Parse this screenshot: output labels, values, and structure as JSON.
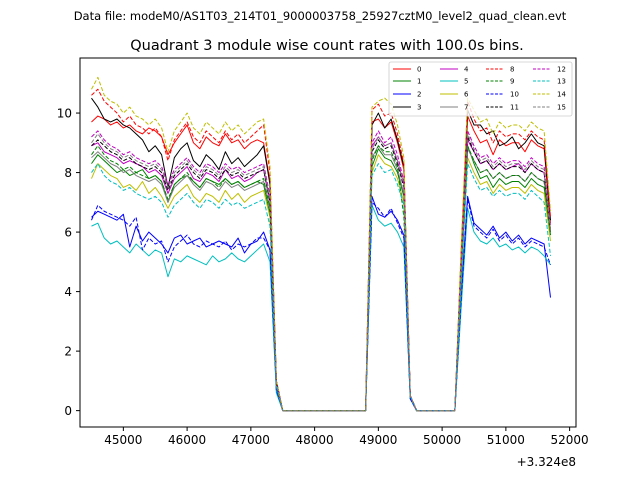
{
  "suptitle": "Data file: modeM0/AS1T03_214T01_9000003758_25927cztM0_level2_quad_clean.evt",
  "chart_data": {
    "type": "line",
    "title": "Quadrant 3 module wise count rates with 100.0s bins.",
    "xlabel": "",
    "ylabel": "",
    "x_offset_label": "+3.324e8",
    "xlim": [
      44320,
      52100
    ],
    "ylim": [
      -0.55,
      11.85
    ],
    "xticks": [
      45000,
      46000,
      47000,
      48000,
      49000,
      50000,
      51000,
      52000
    ],
    "xtick_labels": [
      "45000",
      "46000",
      "47000",
      "48000",
      "49000",
      "50000",
      "51000",
      "52000"
    ],
    "yticks": [
      0,
      2,
      4,
      6,
      8,
      10
    ],
    "ytick_labels": [
      "0",
      "2",
      "4",
      "6",
      "8",
      "10"
    ],
    "grid": false,
    "legend_position": "top-right",
    "note": "x values are seconds relative to offset +3.324e8; each series is sampled on a 100 s grid split into three observing segments (44500-47400, 48800-49500, 50200-51700) joined by zero-rate gaps",
    "segments": [
      {
        "start": 44500,
        "step": 100,
        "count": 30
      },
      {
        "start": 48800,
        "step": 100,
        "count": 8
      },
      {
        "start": 50200,
        "step": 100,
        "count": 16
      }
    ],
    "series": [
      {
        "name": "0",
        "color": "#ff0000",
        "dash": "solid",
        "seg1": [
          9.7,
          9.9,
          9.8,
          9.6,
          9.7,
          9.5,
          9.6,
          9.4,
          9.3,
          9.5,
          9.4,
          9.2,
          8.6,
          9.0,
          9.3,
          9.6,
          9.0,
          8.8,
          9.2,
          9.0,
          8.9,
          9.3,
          9.0,
          9.1,
          8.8,
          9.0,
          9.1,
          9.0,
          7.7,
          1.0
        ],
        "seg2": [
          0.0,
          9.7,
          9.8,
          9.5,
          9.7,
          9.0,
          8.1,
          0.5
        ],
        "seg3": [
          0.0,
          5.2,
          9.9,
          9.4,
          9.0,
          9.1,
          8.6,
          9.1,
          8.9,
          9.0,
          9.0,
          8.7,
          9.1,
          8.9,
          8.8,
          6.3
        ]
      },
      {
        "name": "1",
        "color": "#008000",
        "dash": "solid",
        "seg1": [
          8.3,
          8.6,
          8.4,
          8.2,
          8.0,
          8.1,
          7.9,
          8.0,
          8.1,
          7.8,
          7.9,
          7.7,
          7.0,
          7.6,
          7.8,
          7.9,
          7.7,
          7.5,
          7.8,
          7.7,
          7.6,
          7.8,
          7.6,
          7.7,
          7.5,
          7.6,
          7.7,
          7.6,
          6.6,
          0.9
        ],
        "seg2": [
          0.0,
          8.2,
          8.8,
          8.5,
          8.4,
          8.0,
          7.2,
          0.5
        ],
        "seg3": [
          0.0,
          4.5,
          8.9,
          8.3,
          7.8,
          7.9,
          7.5,
          7.8,
          7.6,
          7.7,
          7.7,
          7.5,
          7.8,
          7.6,
          7.5,
          5.9
        ]
      },
      {
        "name": "2",
        "color": "#0000ff",
        "dash": "solid",
        "seg1": [
          6.5,
          6.7,
          6.6,
          6.5,
          6.4,
          6.6,
          5.5,
          6.2,
          5.7,
          6.0,
          5.8,
          5.6,
          5.3,
          5.8,
          5.9,
          5.6,
          5.7,
          5.8,
          5.5,
          5.6,
          5.7,
          5.6,
          5.5,
          5.8,
          5.3,
          5.6,
          5.7,
          6.0,
          5.4,
          0.7
        ],
        "seg2": [
          0.0,
          7.2,
          6.6,
          6.5,
          6.7,
          6.4,
          5.9,
          0.4
        ],
        "seg3": [
          0.0,
          3.9,
          7.2,
          6.3,
          6.1,
          5.9,
          6.2,
          5.8,
          6.0,
          5.7,
          5.9,
          5.6,
          5.8,
          5.7,
          5.6,
          3.8
        ]
      },
      {
        "name": "3",
        "color": "#000000",
        "dash": "solid",
        "seg1": [
          10.5,
          10.2,
          9.8,
          9.7,
          9.8,
          9.6,
          9.5,
          9.3,
          9.1,
          8.7,
          8.9,
          8.6,
          7.5,
          8.5,
          8.8,
          9.0,
          8.4,
          8.2,
          8.6,
          8.4,
          8.1,
          8.7,
          8.3,
          8.5,
          8.2,
          8.4,
          8.6,
          8.9,
          7.6,
          1.0
        ],
        "seg2": [
          0.0,
          9.6,
          10.0,
          9.5,
          9.8,
          9.1,
          8.2,
          0.5
        ],
        "seg3": [
          0.0,
          5.3,
          10.1,
          9.6,
          9.6,
          9.3,
          9.4,
          8.9,
          9.0,
          9.2,
          8.8,
          9.0,
          9.3,
          9.0,
          8.9,
          6.4
        ]
      },
      {
        "name": "4",
        "color": "#c000c0",
        "dash": "solid",
        "seg1": [
          8.9,
          9.0,
          8.7,
          8.6,
          8.5,
          8.3,
          8.4,
          8.3,
          8.2,
          8.0,
          8.1,
          7.9,
          7.3,
          7.8,
          8.0,
          8.2,
          7.8,
          7.7,
          8.0,
          7.9,
          7.7,
          8.1,
          7.8,
          7.9,
          7.7,
          7.8,
          8.0,
          8.1,
          7.0,
          0.9
        ],
        "seg2": [
          0.0,
          8.9,
          9.2,
          8.9,
          9.0,
          8.4,
          7.6,
          0.5
        ],
        "seg3": [
          0.0,
          4.7,
          9.1,
          8.7,
          8.3,
          8.4,
          8.1,
          8.3,
          8.1,
          8.2,
          8.3,
          8.0,
          8.3,
          8.1,
          8.0,
          6.0
        ]
      },
      {
        "name": "5",
        "color": "#00bfbf",
        "dash": "solid",
        "seg1": [
          6.2,
          6.3,
          5.8,
          5.6,
          5.7,
          5.5,
          5.3,
          5.6,
          5.4,
          5.2,
          5.4,
          5.3,
          4.5,
          5.1,
          5.0,
          5.2,
          5.1,
          5.0,
          4.9,
          5.2,
          5.0,
          5.1,
          5.3,
          5.1,
          5.0,
          5.2,
          5.4,
          5.6,
          5.0,
          0.6
        ],
        "seg2": [
          0.0,
          6.9,
          6.4,
          6.2,
          6.3,
          6.0,
          5.5,
          0.4
        ],
        "seg3": [
          0.0,
          3.5,
          6.8,
          6.0,
          5.7,
          5.6,
          5.8,
          5.5,
          5.6,
          5.4,
          5.5,
          5.3,
          5.5,
          5.4,
          5.2,
          4.9
        ]
      },
      {
        "name": "6",
        "color": "#bfbf00",
        "dash": "solid",
        "seg1": [
          7.8,
          8.3,
          8.1,
          7.9,
          7.8,
          7.5,
          7.6,
          7.4,
          7.7,
          7.3,
          7.5,
          7.2,
          6.8,
          7.2,
          7.4,
          7.6,
          7.2,
          7.0,
          7.3,
          7.2,
          7.0,
          7.4,
          7.1,
          7.3,
          7.0,
          7.2,
          7.3,
          7.4,
          6.5,
          0.9
        ],
        "seg2": [
          0.0,
          8.0,
          8.6,
          8.3,
          8.2,
          7.8,
          7.0,
          0.5
        ],
        "seg3": [
          0.0,
          4.3,
          8.5,
          8.0,
          7.6,
          7.7,
          7.3,
          7.6,
          7.4,
          7.5,
          7.5,
          7.3,
          7.6,
          7.4,
          7.3,
          5.7
        ]
      },
      {
        "name": "7",
        "color": "#808080",
        "dash": "solid",
        "seg1": [
          8.5,
          8.7,
          8.5,
          8.3,
          8.2,
          8.0,
          8.1,
          7.9,
          7.8,
          7.7,
          7.8,
          7.6,
          7.0,
          7.5,
          7.7,
          7.9,
          7.6,
          7.4,
          7.7,
          7.6,
          7.4,
          7.7,
          7.5,
          7.6,
          7.4,
          7.5,
          7.6,
          7.7,
          6.8,
          0.9
        ],
        "seg2": [
          0.0,
          8.5,
          8.9,
          8.6,
          8.6,
          8.1,
          7.3,
          0.5
        ],
        "seg3": [
          0.0,
          4.6,
          8.8,
          8.4,
          8.0,
          8.1,
          7.8,
          8.0,
          7.8,
          7.9,
          7.9,
          7.7,
          8.0,
          7.8,
          7.7,
          6.0
        ]
      },
      {
        "name": "8",
        "color": "#ff0000",
        "dash": "dashed",
        "seg1": [
          10.6,
          10.8,
          10.4,
          10.2,
          10.0,
          9.7,
          9.9,
          9.6,
          9.5,
          9.3,
          9.5,
          9.2,
          8.4,
          9.1,
          9.4,
          9.7,
          9.2,
          9.0,
          9.4,
          9.2,
          9.0,
          9.4,
          9.1,
          9.3,
          9.0,
          9.2,
          9.4,
          9.6,
          8.0,
          1.0
        ],
        "seg2": [
          0.0,
          10.1,
          10.3,
          9.9,
          10.0,
          9.3,
          8.3,
          0.5
        ],
        "seg3": [
          0.0,
          5.4,
          10.4,
          9.8,
          9.4,
          9.5,
          9.0,
          9.4,
          9.2,
          9.3,
          9.3,
          9.1,
          9.4,
          9.2,
          9.1,
          6.5
        ]
      },
      {
        "name": "9",
        "color": "#008000",
        "dash": "dashed",
        "seg1": [
          8.6,
          8.9,
          8.6,
          8.4,
          8.3,
          8.1,
          8.2,
          8.0,
          7.9,
          7.8,
          7.9,
          7.7,
          7.1,
          7.6,
          7.8,
          8.0,
          7.7,
          7.5,
          7.8,
          7.7,
          7.5,
          7.8,
          7.6,
          7.7,
          7.5,
          7.6,
          7.7,
          7.8,
          6.8,
          0.9
        ],
        "seg2": [
          0.0,
          8.4,
          8.9,
          8.7,
          8.7,
          8.2,
          6.5,
          0.5
        ],
        "seg3": [
          0.0,
          4.6,
          8.9,
          8.4,
          8.0,
          8.1,
          7.8,
          8.0,
          7.8,
          7.9,
          7.9,
          7.7,
          8.0,
          7.8,
          7.7,
          5.9
        ]
      },
      {
        "name": "10",
        "color": "#0000ff",
        "dash": "dashed",
        "seg1": [
          6.4,
          6.9,
          6.7,
          6.6,
          6.5,
          6.4,
          6.2,
          6.5,
          5.4,
          5.8,
          5.6,
          5.7,
          5.0,
          5.5,
          5.7,
          5.9,
          5.6,
          5.5,
          5.7,
          5.6,
          5.5,
          5.7,
          5.4,
          5.6,
          5.5,
          5.6,
          5.8,
          5.8,
          5.4,
          0.7
        ],
        "seg2": [
          0.0,
          7.0,
          6.8,
          6.5,
          6.8,
          6.3,
          5.8,
          0.4
        ],
        "seg3": [
          0.0,
          3.8,
          7.1,
          6.2,
          6.0,
          5.8,
          6.1,
          5.7,
          5.9,
          5.6,
          5.8,
          5.5,
          5.7,
          5.6,
          5.5,
          4.9
        ]
      },
      {
        "name": "11",
        "color": "#000000",
        "dash": "dashed",
        "seg1": [
          8.9,
          9.1,
          8.9,
          8.7,
          8.6,
          8.4,
          8.5,
          8.3,
          8.2,
          8.1,
          8.2,
          8.0,
          7.4,
          7.9,
          8.1,
          8.3,
          8.0,
          7.8,
          8.1,
          8.0,
          7.8,
          8.1,
          7.9,
          8.0,
          7.8,
          7.9,
          8.0,
          8.1,
          7.0,
          0.9
        ],
        "seg2": [
          0.0,
          8.7,
          9.1,
          8.8,
          8.9,
          8.3,
          7.5,
          0.5
        ],
        "seg3": [
          0.0,
          4.8,
          9.2,
          8.7,
          8.3,
          8.4,
          8.1,
          8.3,
          8.1,
          8.2,
          8.2,
          8.0,
          8.3,
          8.1,
          8.0,
          6.1
        ]
      },
      {
        "name": "12",
        "color": "#c000c0",
        "dash": "dashed",
        "seg1": [
          9.2,
          9.4,
          9.1,
          8.9,
          8.8,
          8.6,
          8.7,
          8.5,
          8.4,
          8.3,
          8.4,
          8.2,
          7.6,
          8.1,
          8.3,
          8.5,
          8.2,
          8.0,
          8.3,
          8.2,
          8.0,
          8.3,
          8.1,
          8.2,
          8.0,
          8.1,
          8.2,
          8.3,
          7.2,
          0.9
        ],
        "seg2": [
          0.0,
          9.0,
          9.4,
          9.0,
          9.2,
          8.6,
          7.7,
          0.5
        ],
        "seg3": [
          0.0,
          4.9,
          9.4,
          8.9,
          8.5,
          8.6,
          8.3,
          8.5,
          8.3,
          8.4,
          8.4,
          8.2,
          8.5,
          8.3,
          8.2,
          6.2
        ]
      },
      {
        "name": "13",
        "color": "#00bfbf",
        "dash": "dashed",
        "seg1": [
          8.0,
          8.3,
          7.9,
          7.7,
          7.6,
          7.4,
          7.5,
          7.3,
          7.2,
          7.1,
          7.2,
          7.0,
          6.5,
          6.9,
          7.1,
          7.3,
          7.0,
          6.8,
          7.1,
          7.0,
          6.8,
          7.1,
          6.9,
          7.0,
          6.8,
          6.9,
          7.0,
          7.1,
          6.2,
          0.8
        ],
        "seg2": [
          0.0,
          7.9,
          8.3,
          8.0,
          8.1,
          7.6,
          6.9,
          0.5
        ],
        "seg3": [
          0.0,
          4.3,
          8.3,
          7.8,
          7.4,
          7.5,
          7.2,
          7.4,
          7.2,
          7.3,
          7.3,
          7.1,
          7.4,
          7.2,
          7.0,
          5.2
        ]
      },
      {
        "name": "14",
        "color": "#bfbf00",
        "dash": "dashed",
        "seg1": [
          10.8,
          11.2,
          10.6,
          10.4,
          10.3,
          10.0,
          10.2,
          9.9,
          9.8,
          9.6,
          9.8,
          9.5,
          8.7,
          9.4,
          9.7,
          10.0,
          9.5,
          9.3,
          9.7,
          9.5,
          9.3,
          9.7,
          9.4,
          9.6,
          9.3,
          9.5,
          9.7,
          9.8,
          8.2,
          1.0
        ],
        "seg2": [
          0.0,
          10.2,
          10.4,
          10.5,
          10.3,
          9.6,
          8.5,
          0.5
        ],
        "seg3": [
          0.0,
          5.6,
          10.5,
          10.1,
          9.7,
          9.8,
          9.3,
          9.7,
          9.5,
          9.6,
          9.6,
          9.4,
          9.7,
          9.5,
          9.4,
          6.7
        ]
      },
      {
        "name": "15",
        "color": "#808080",
        "dash": "dashed",
        "seg1": [
          9.0,
          9.3,
          9.0,
          8.8,
          8.7,
          8.5,
          8.6,
          8.4,
          8.3,
          8.2,
          8.3,
          8.1,
          7.5,
          8.0,
          8.2,
          8.4,
          8.1,
          7.9,
          8.2,
          8.1,
          7.9,
          8.2,
          8.0,
          8.1,
          7.9,
          8.0,
          8.1,
          8.2,
          7.1,
          0.9
        ],
        "seg2": [
          0.0,
          8.8,
          9.2,
          8.9,
          9.0,
          8.4,
          7.6,
          0.5
        ],
        "seg3": [
          0.0,
          4.8,
          9.3,
          8.8,
          8.4,
          8.5,
          8.2,
          8.4,
          8.2,
          8.3,
          8.3,
          8.1,
          8.4,
          8.2,
          8.1,
          6.1
        ]
      }
    ]
  }
}
